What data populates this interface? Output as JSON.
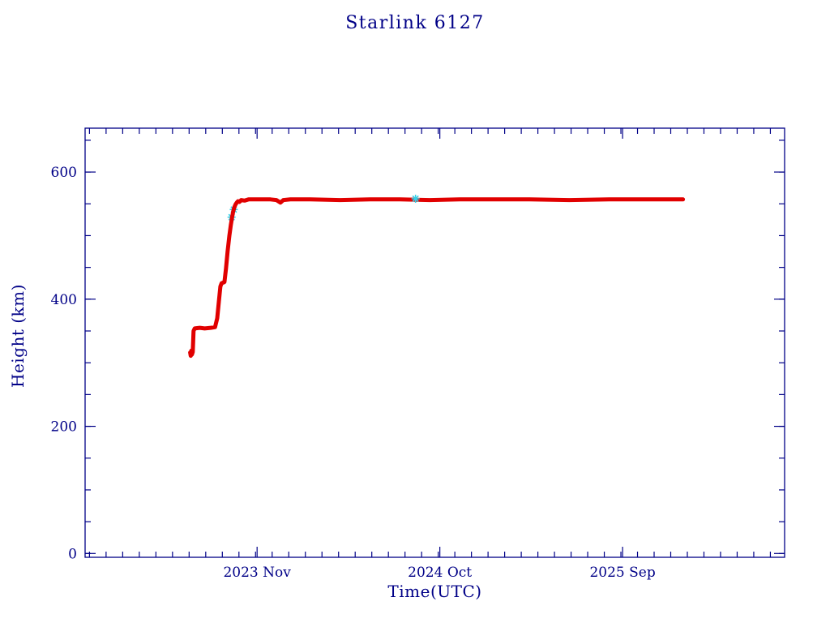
{
  "page": {
    "background": "#ffffff"
  },
  "chart_data": {
    "type": "line",
    "title": "Starlink 6127",
    "xlabel": "Time(UTC)",
    "ylabel": "Height (km)",
    "text_color": "#000087",
    "axis_color": "#000087",
    "grid": false,
    "legend": null,
    "xlim": [
      2022.97,
      2026.48
    ],
    "ylim": [
      -6,
      669
    ],
    "x_ticks": [
      {
        "value": 2023.833,
        "label": "2023 Nov"
      },
      {
        "value": 2024.75,
        "label": "2024 Oct"
      },
      {
        "value": 2025.667,
        "label": "2025 Sep"
      }
    ],
    "y_ticks": [
      {
        "value": 0,
        "label": "0"
      },
      {
        "value": 200,
        "label": "200"
      },
      {
        "value": 400,
        "label": "400"
      },
      {
        "value": 600,
        "label": "600"
      }
    ],
    "x_minor_step": 0.083333,
    "y_minor_step": 50,
    "series": [
      {
        "name": "secondary-track-under",
        "style": "markers",
        "color": "#35d0e8",
        "points": [
          [
            2023.705,
            529
          ],
          [
            2023.716,
            541
          ]
        ]
      },
      {
        "name": "height-track",
        "style": "line",
        "color": "#e10000",
        "width": 5,
        "points": [
          [
            2023.497,
            316
          ],
          [
            2023.5,
            311
          ],
          [
            2023.503,
            319
          ],
          [
            2023.506,
            313
          ],
          [
            2023.51,
            317
          ],
          [
            2023.514,
            350
          ],
          [
            2023.52,
            354
          ],
          [
            2023.545,
            355
          ],
          [
            2023.57,
            354
          ],
          [
            2023.6,
            355
          ],
          [
            2023.622,
            356
          ],
          [
            2023.633,
            370
          ],
          [
            2023.641,
            396
          ],
          [
            2023.649,
            420
          ],
          [
            2023.655,
            425
          ],
          [
            2023.669,
            427
          ],
          [
            2023.677,
            448
          ],
          [
            2023.685,
            475
          ],
          [
            2023.694,
            500
          ],
          [
            2023.701,
            516
          ],
          [
            2023.708,
            530
          ],
          [
            2023.713,
            538
          ],
          [
            2023.719,
            545
          ],
          [
            2023.725,
            549
          ],
          [
            2023.731,
            552
          ],
          [
            2023.737,
            554
          ],
          [
            2023.745,
            553
          ],
          [
            2023.753,
            556
          ],
          [
            2023.77,
            555
          ],
          [
            2023.79,
            557
          ],
          [
            2023.85,
            557
          ],
          [
            2023.9,
            557
          ],
          [
            2023.93,
            556
          ],
          [
            2023.95,
            552
          ],
          [
            2023.965,
            556
          ],
          [
            2024,
            557
          ],
          [
            2024.1,
            557
          ],
          [
            2024.25,
            556
          ],
          [
            2024.4,
            557
          ],
          [
            2024.55,
            557
          ],
          [
            2024.7,
            556
          ],
          [
            2024.85,
            557
          ],
          [
            2025,
            557
          ],
          [
            2025.2,
            557
          ],
          [
            2025.4,
            556
          ],
          [
            2025.6,
            557
          ],
          [
            2025.8,
            557
          ],
          [
            2025.9,
            557
          ],
          [
            2025.97,
            557
          ]
        ]
      },
      {
        "name": "secondary-track-over",
        "style": "markers",
        "color": "#35d0e8",
        "points": [
          [
            2024.628,
            558
          ]
        ]
      }
    ]
  }
}
